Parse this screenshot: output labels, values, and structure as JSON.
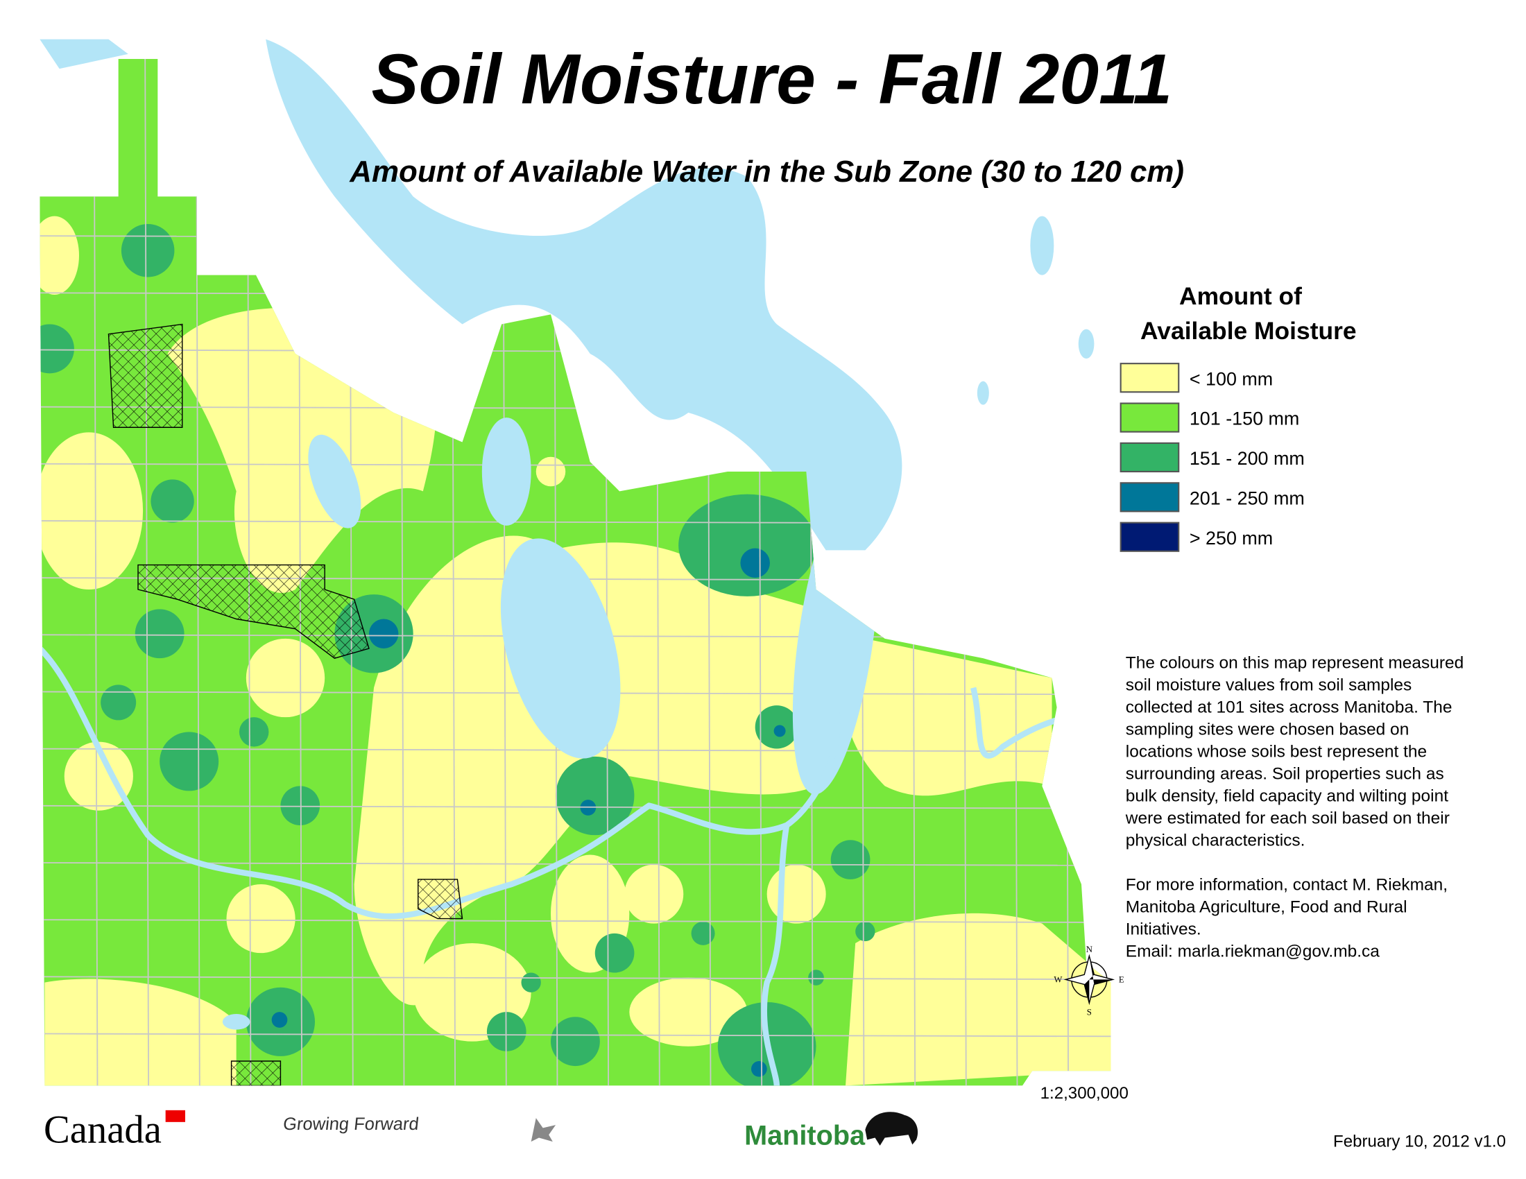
{
  "title": "Soil Moisture - Fall 2011",
  "subtitle": "Amount of Available Water in the Sub Zone (30 to 120 cm)",
  "legend": {
    "title": [
      "Amount of",
      "Available Moisture"
    ],
    "items": [
      {
        "label": "< 100 mm",
        "color": "#ffff99"
      },
      {
        "label": "101 -150 mm",
        "color": "#78e83c"
      },
      {
        "label": "151 - 200 mm",
        "color": "#33b366"
      },
      {
        "label": "201 - 250 mm",
        "color": "#007799"
      },
      {
        "label": "> 250 mm",
        "color": "#001a73"
      }
    ]
  },
  "description": [
    "The colours on this map represent measured",
    "soil moisture values from soil samples",
    "collected at 101 sites across Manitoba.  The",
    "sampling sites were chosen based on",
    "locations whose soils best represent the",
    "surrounding areas.  Soil properties such as",
    "bulk density, field capacity and wilting point",
    "were estimated for each soil based on their",
    "physical characteristics."
  ],
  "contact": [
    "For more information, contact M. Riekman,",
    "Manitoba Agriculture, Food and Rural",
    "Initiatives.",
    "Email: marla.riekman@gov.mb.ca"
  ],
  "compass": {
    "n": "N",
    "e": "E",
    "s": "S",
    "w": "W"
  },
  "scale": "1:2,300,000",
  "logos": {
    "canada": "Canada",
    "growing_forward": "Growing Forward",
    "manitoba": "Manitoba"
  },
  "date": "February 10, 2012 v1.0"
}
